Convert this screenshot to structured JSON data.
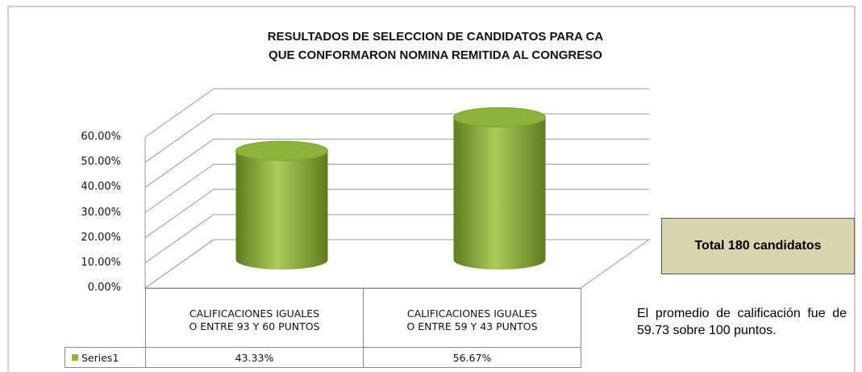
{
  "chart_data": {
    "type": "bar",
    "title": "RESULTADOS DE SELECCION DE CANDIDATOS PARA CA QUE CONFORMARON NOMINA REMITIDA AL CONGRESO",
    "categories": [
      "CALIFICACIONES IGUALES O ENTRE 93 Y 60 PUNTOS",
      "CALIFICACIONES IGUALES O ENTRE 59 Y 43 PUNTOS"
    ],
    "series": [
      {
        "name": "Series1",
        "color": "#8db43a",
        "values": [
          43.33,
          56.67
        ],
        "value_labels": [
          "43.33%",
          "56.67%"
        ]
      }
    ],
    "ylim": [
      0,
      60
    ],
    "yticks": [
      {
        "value": 0,
        "label": "0.00%"
      },
      {
        "value": 10,
        "label": "10.00%"
      },
      {
        "value": 20,
        "label": "20.00%"
      },
      {
        "value": 30,
        "label": "30.00%"
      },
      {
        "value": 40,
        "label": "40.00%"
      },
      {
        "value": 50,
        "label": "50.00%"
      },
      {
        "value": 60,
        "label": "60.00%"
      }
    ],
    "grid": true,
    "annotations": [
      "Total 180 candidatos",
      "El promedio de calificación fue de 59.73 sobre 100 puntos."
    ]
  }
}
